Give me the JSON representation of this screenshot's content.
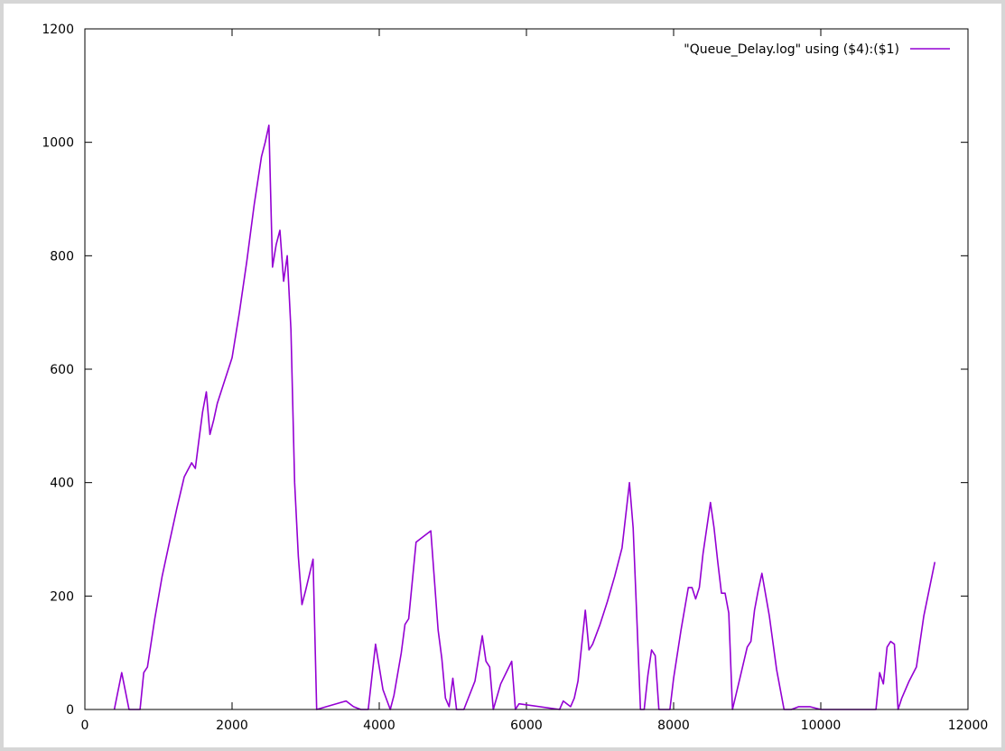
{
  "chart_data": {
    "type": "line",
    "title": "",
    "xlabel": "",
    "ylabel": "",
    "xlim": [
      0,
      12000
    ],
    "ylim": [
      0,
      1200
    ],
    "xticks": [
      0,
      2000,
      4000,
      6000,
      8000,
      10000,
      12000
    ],
    "yticks": [
      0,
      200,
      400,
      600,
      800,
      1000,
      1200
    ],
    "grid": false,
    "legend_position": "top-right",
    "series": [
      {
        "name": "\"Queue_Delay.log\" using ($4):($1)",
        "color": "#9400d3",
        "x": [
          400,
          500,
          600,
          650,
          750,
          800,
          850,
          950,
          1050,
          1150,
          1250,
          1350,
          1450,
          1500,
          1550,
          1600,
          1650,
          1700,
          1750,
          1800,
          1900,
          2000,
          2100,
          2200,
          2300,
          2400,
          2450,
          2500,
          2550,
          2600,
          2650,
          2700,
          2750,
          2800,
          2850,
          2900,
          2950,
          3000,
          3100,
          3150,
          3550,
          3650,
          3750,
          3850,
          3950,
          4000,
          4050,
          4150,
          4200,
          4300,
          4350,
          4400,
          4500,
          4600,
          4700,
          4800,
          4850,
          4900,
          4950,
          5000,
          5050,
          5100,
          5150,
          5300,
          5400,
          5450,
          5500,
          5550,
          5650,
          5800,
          5850,
          5900,
          6450,
          6500,
          6550,
          6600,
          6650,
          6700,
          6800,
          6850,
          6900,
          7000,
          7100,
          7200,
          7300,
          7400,
          7450,
          7500,
          7550,
          7600,
          7650,
          7700,
          7750,
          7800,
          7850,
          7950,
          8000,
          8100,
          8200,
          8250,
          8300,
          8350,
          8400,
          8500,
          8550,
          8600,
          8650,
          8700,
          8750,
          8800,
          8900,
          9000,
          9050,
          9100,
          9150,
          9200,
          9300,
          9400,
          9500,
          9600,
          9700,
          9850,
          10000,
          10100,
          10750,
          10800,
          10850,
          10900,
          10950,
          11000,
          11050,
          11100,
          11200,
          11300,
          11400,
          11550
        ],
        "y": [
          0,
          65,
          0,
          0,
          0,
          65,
          75,
          160,
          235,
          295,
          355,
          410,
          435,
          425,
          475,
          525,
          560,
          485,
          510,
          540,
          580,
          620,
          700,
          790,
          890,
          975,
          1000,
          1030,
          780,
          820,
          845,
          755,
          800,
          670,
          400,
          270,
          185,
          210,
          265,
          0,
          15,
          5,
          0,
          0,
          115,
          75,
          35,
          0,
          25,
          100,
          150,
          160,
          295,
          305,
          315,
          140,
          90,
          20,
          5,
          55,
          0,
          0,
          0,
          50,
          130,
          85,
          75,
          0,
          45,
          85,
          0,
          10,
          0,
          15,
          10,
          5,
          20,
          50,
          175,
          105,
          115,
          150,
          190,
          235,
          285,
          400,
          320,
          160,
          0,
          0,
          60,
          105,
          95,
          0,
          0,
          0,
          55,
          140,
          215,
          215,
          195,
          215,
          275,
          365,
          320,
          260,
          205,
          205,
          170,
          0,
          55,
          110,
          120,
          175,
          210,
          240,
          165,
          70,
          0,
          0,
          5,
          5,
          0,
          0,
          0,
          65,
          45,
          110,
          120,
          115,
          0,
          20,
          50,
          75,
          165,
          260
        ]
      }
    ]
  }
}
